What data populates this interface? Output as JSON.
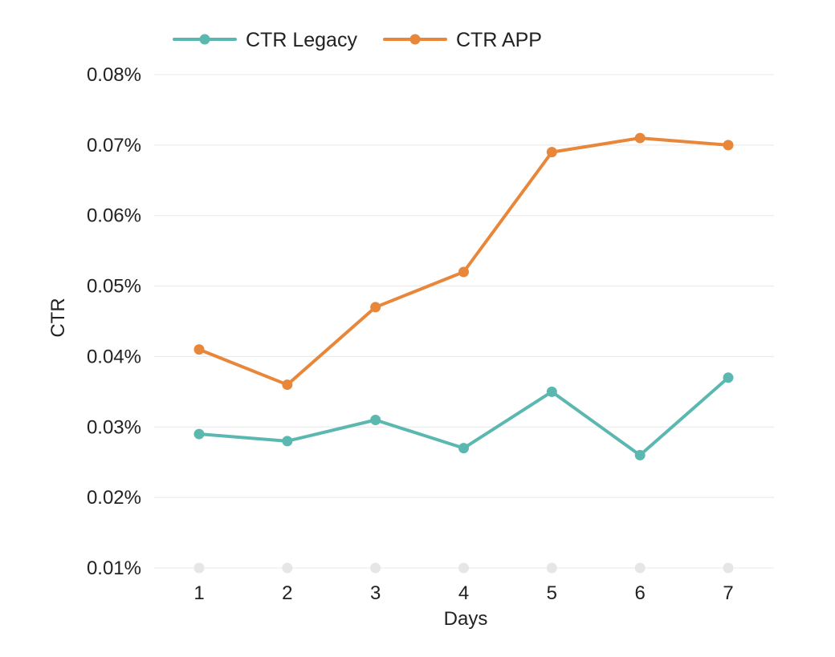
{
  "chart_data": {
    "type": "line",
    "title": "",
    "xlabel": "Days",
    "ylabel": "CTR",
    "categories": [
      "1",
      "2",
      "3",
      "4",
      "5",
      "6",
      "7"
    ],
    "y_ticks": [
      "0.01%",
      "0.02%",
      "0.03%",
      "0.04%",
      "0.05%",
      "0.06%",
      "0.07%",
      "0.08%"
    ],
    "y_tick_values": [
      0.01,
      0.02,
      0.03,
      0.04,
      0.05,
      0.06,
      0.07,
      0.08
    ],
    "ylim": [
      0.01,
      0.08
    ],
    "y_unit": "%",
    "grid": true,
    "legend_position": "top-left",
    "series": [
      {
        "name": "CTR Legacy",
        "color": "#5bb8b0",
        "values": [
          0.029,
          0.028,
          0.031,
          0.027,
          0.035,
          0.026,
          0.037
        ]
      },
      {
        "name": "CTR APP",
        "color": "#e8873a",
        "values": [
          0.041,
          0.036,
          0.047,
          0.052,
          0.069,
          0.071,
          0.07
        ]
      },
      {
        "name": "",
        "color": "#e6e6e6",
        "values": [
          0.01,
          0.01,
          0.01,
          0.01,
          0.01,
          0.01,
          0.01
        ]
      }
    ]
  }
}
